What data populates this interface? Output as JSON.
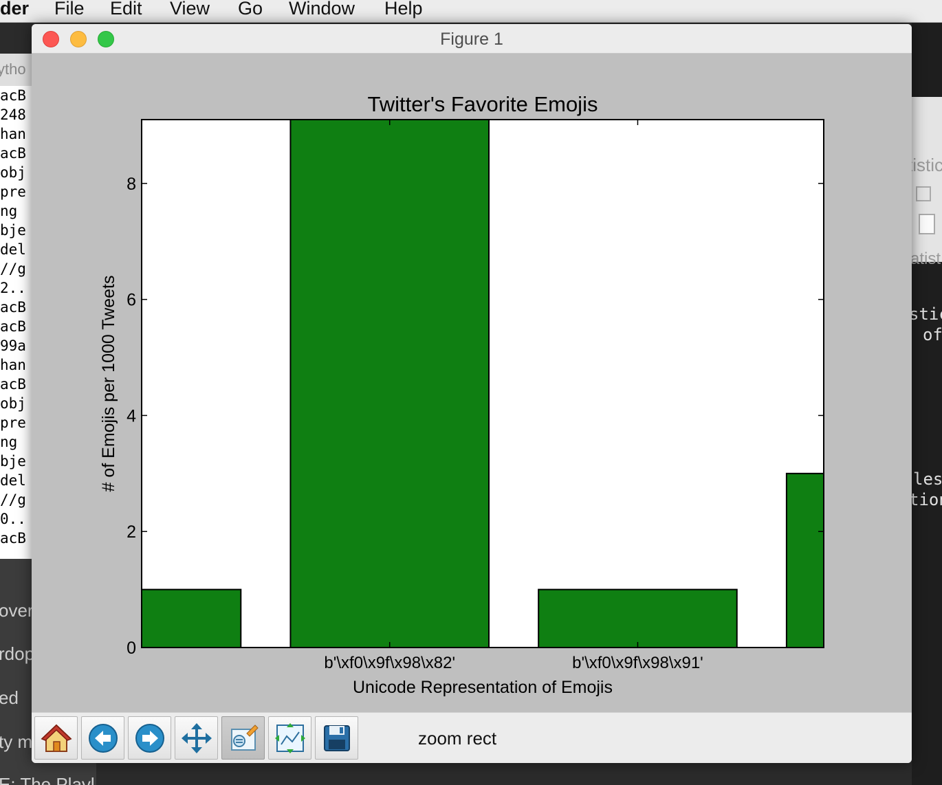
{
  "menubar": {
    "app_name": "der",
    "items": [
      "File",
      "Edit",
      "View",
      "Go",
      "Window",
      "Help"
    ]
  },
  "background_left": {
    "tab_label": "ytho",
    "code_lines": [
      "acB",
      "248",
      "han",
      "acB",
      "obj",
      "pre",
      "ng",
      "bje",
      "del",
      "//g",
      "2..",
      "acB",
      "acB",
      "99a",
      "han",
      "acB",
      "obj",
      "pre",
      "ng",
      "bje",
      "del",
      "//g",
      "0..",
      "acB"
    ],
    "dark_items": [
      "over",
      "rdop",
      "ed",
      "ty m",
      "E: The Playl"
    ]
  },
  "background_right": {
    "panel_text": "tistic",
    "dark_texts": [
      "atist",
      "stic",
      "of",
      "les",
      "tion"
    ]
  },
  "window": {
    "title": "Figure 1"
  },
  "chart_data": {
    "type": "bar",
    "title": "Twitter's Favorite Emojis",
    "xlabel": "Unicode Representation of Emojis",
    "ylabel": "# of Emojis per 1000 Tweets",
    "ylim": [
      0,
      9.1
    ],
    "yticks": [
      0,
      2,
      4,
      6,
      8
    ],
    "bar_color": "#0f7f12",
    "bars": [
      {
        "start": 0.0,
        "end": 0.4,
        "value": 1
      },
      {
        "start": 0.6,
        "end": 1.4,
        "value": 9.1
      },
      {
        "start": 1.6,
        "end": 2.4,
        "value": 1
      },
      {
        "start": 2.6,
        "end": 3.4,
        "value": 3
      }
    ],
    "xlim": [
      0,
      2.75
    ],
    "xtick_positions": [
      1,
      2
    ],
    "xtick_labels": [
      "b'\\xf0\\x9f\\x98\\x82'",
      "b'\\xf0\\x9f\\x98\\x91'"
    ],
    "grid": false
  },
  "toolbar": {
    "buttons": [
      {
        "name": "home-button",
        "icon": "home-icon"
      },
      {
        "name": "back-button",
        "icon": "back-arrow-icon"
      },
      {
        "name": "forward-button",
        "icon": "forward-arrow-icon"
      },
      {
        "name": "pan-button",
        "icon": "move-icon"
      },
      {
        "name": "zoom-button",
        "icon": "zoom-rect-icon"
      },
      {
        "name": "subplots-button",
        "icon": "subplots-icon"
      },
      {
        "name": "save-button",
        "icon": "save-icon"
      }
    ],
    "status": "zoom rect"
  }
}
